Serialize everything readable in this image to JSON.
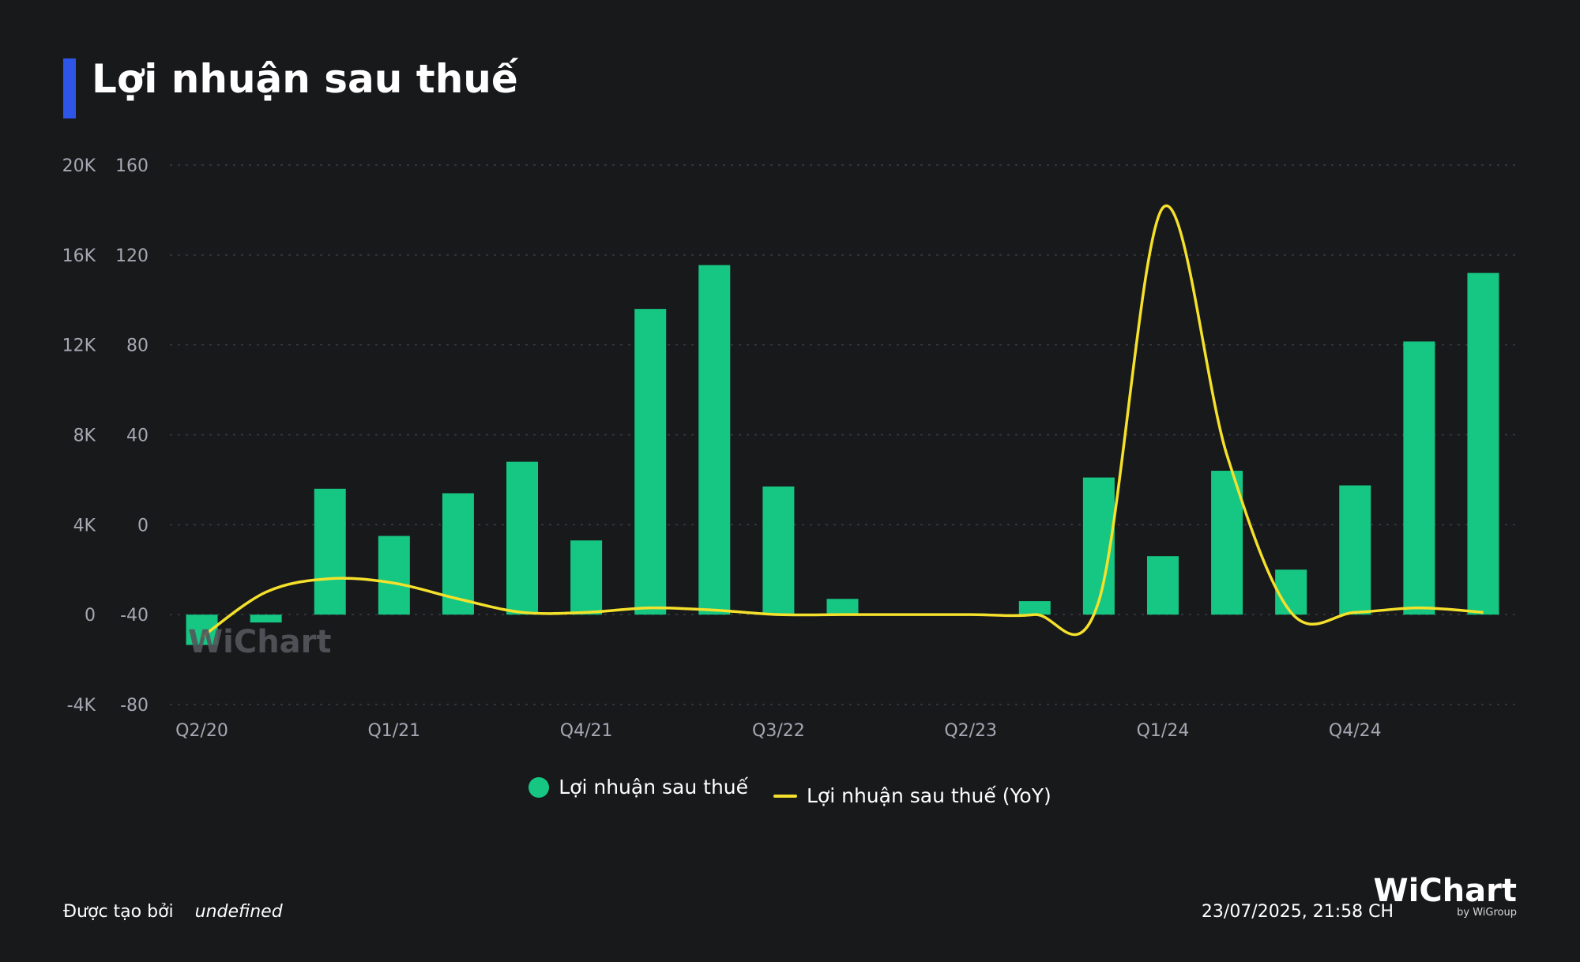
{
  "title": "Lợi nhuận sau thuế",
  "colors": {
    "accent": "#2d55e8",
    "bar": "#16c784",
    "line": "#f5e12b",
    "background": "#18191b"
  },
  "chart_data": {
    "type": "bar",
    "categories": [
      "Q2/20",
      "Q3/20",
      "Q4/20",
      "Q1/21",
      "Q2/21",
      "Q3/21",
      "Q4/21",
      "Q1/22",
      "Q2/22",
      "Q3/22",
      "Q4/22",
      "Q1/23",
      "Q2/23",
      "Q3/23",
      "Q4/23",
      "Q1/24",
      "Q2/24",
      "Q3/24",
      "Q4/24",
      "Q1/25",
      "Q2/25"
    ],
    "x_tick_labels": [
      "Q2/20",
      "Q1/21",
      "Q4/21",
      "Q3/22",
      "Q2/23",
      "Q1/24",
      "Q4/24"
    ],
    "series": [
      {
        "name": "Lợi nhuận sau thuế",
        "type": "bar",
        "axis": "left",
        "values": [
          -1350,
          -350,
          5600,
          3500,
          5400,
          6800,
          3300,
          13600,
          15550,
          5700,
          700,
          0,
          50,
          600,
          6100,
          2600,
          6400,
          2000,
          5750,
          12150,
          15200
        ]
      },
      {
        "name": "Lợi nhuận sau thuế (YoY)",
        "type": "line",
        "axis": "right",
        "values": [
          -50,
          -30,
          -24,
          -26,
          -33,
          -39,
          -39,
          -37,
          -38,
          -40,
          -40,
          -40,
          -40,
          -40,
          -34,
          141,
          31,
          -39,
          -39,
          -37,
          -39
        ]
      }
    ],
    "y_left": {
      "ticks": [
        "20K",
        "16K",
        "12K",
        "8K",
        "4K",
        "0",
        "-4K"
      ],
      "range": [
        -4000,
        20000
      ]
    },
    "y_right": {
      "ticks": [
        "160",
        "120",
        "80",
        "40",
        "0",
        "-40",
        "-80"
      ],
      "range": [
        -80,
        160
      ]
    },
    "grid": true,
    "legend": "bottom-center"
  },
  "watermark": "WiChart",
  "footer": {
    "created_by_label": "Được tạo bởi",
    "created_by_value": "undefined",
    "datetime": "23/07/2025, 21:58 CH"
  },
  "brand": {
    "name": "WiChart",
    "subtitle": "by WiGroup"
  }
}
